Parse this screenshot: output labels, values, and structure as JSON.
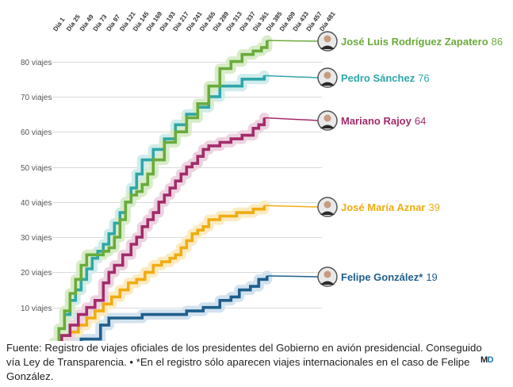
{
  "chart_data": {
    "type": "line",
    "x_label_prefix": "Día",
    "x_ticks": [
      1,
      25,
      49,
      73,
      97,
      121,
      145,
      169,
      193,
      217,
      241,
      265,
      289,
      313,
      337,
      361,
      385,
      409,
      433,
      457,
      481
    ],
    "y_ticks": [
      {
        "value": 10,
        "label": "10 viajes"
      },
      {
        "value": 20,
        "label": "20 viajes"
      },
      {
        "value": 30,
        "label": "30 viajes"
      },
      {
        "value": 40,
        "label": "40 viajes"
      },
      {
        "value": 50,
        "label": "50 viajes"
      },
      {
        "value": 60,
        "label": "60 viajes"
      },
      {
        "value": 70,
        "label": "70 viajes"
      },
      {
        "value": 80,
        "label": "80 viajes"
      }
    ],
    "xlim": [
      1,
      481
    ],
    "ylim": [
      0,
      86
    ],
    "grid": true,
    "series": [
      {
        "name": "José Luis Rodríguez Zapatero",
        "value_label": "86",
        "color": "#6aab3c",
        "halo": "#d8ecc8",
        "points": [
          [
            1,
            0
          ],
          [
            10,
            4
          ],
          [
            20,
            9
          ],
          [
            30,
            14
          ],
          [
            40,
            18
          ],
          [
            50,
            22
          ],
          [
            60,
            25
          ],
          [
            80,
            25
          ],
          [
            90,
            26
          ],
          [
            100,
            27
          ],
          [
            110,
            30
          ],
          [
            120,
            35
          ],
          [
            130,
            40
          ],
          [
            140,
            42
          ],
          [
            150,
            43
          ],
          [
            160,
            45
          ],
          [
            170,
            48
          ],
          [
            180,
            52
          ],
          [
            200,
            57
          ],
          [
            220,
            60
          ],
          [
            240,
            64
          ],
          [
            260,
            68
          ],
          [
            280,
            73
          ],
          [
            300,
            78
          ],
          [
            320,
            80
          ],
          [
            340,
            82
          ],
          [
            360,
            83
          ],
          [
            375,
            84
          ],
          [
            385,
            86
          ]
        ]
      },
      {
        "name": "Pedro Sánchez",
        "value_label": "76",
        "color": "#2ea7a8",
        "halo": "#d0ecec",
        "points": [
          [
            1,
            0
          ],
          [
            10,
            4
          ],
          [
            20,
            8
          ],
          [
            30,
            12
          ],
          [
            40,
            15
          ],
          [
            50,
            18
          ],
          [
            60,
            21
          ],
          [
            70,
            24
          ],
          [
            80,
            26
          ],
          [
            90,
            28
          ],
          [
            100,
            31
          ],
          [
            110,
            34
          ],
          [
            120,
            37
          ],
          [
            130,
            40
          ],
          [
            140,
            44
          ],
          [
            150,
            48
          ],
          [
            160,
            52
          ],
          [
            180,
            55
          ],
          [
            200,
            58
          ],
          [
            220,
            62
          ],
          [
            240,
            65
          ],
          [
            260,
            67
          ],
          [
            280,
            70
          ],
          [
            300,
            73
          ],
          [
            320,
            73
          ],
          [
            340,
            75
          ],
          [
            360,
            75
          ],
          [
            380,
            76
          ]
        ]
      },
      {
        "name": "Mariano Rajoy",
        "value_label": "64",
        "color": "#a32b6b",
        "halo": "#ecd3e0",
        "points": [
          [
            1,
            0
          ],
          [
            15,
            2
          ],
          [
            30,
            5
          ],
          [
            45,
            8
          ],
          [
            60,
            10
          ],
          [
            75,
            12
          ],
          [
            90,
            17
          ],
          [
            100,
            20
          ],
          [
            110,
            22
          ],
          [
            125,
            25
          ],
          [
            140,
            28
          ],
          [
            150,
            30
          ],
          [
            160,
            33
          ],
          [
            170,
            35
          ],
          [
            180,
            37
          ],
          [
            190,
            40
          ],
          [
            200,
            42
          ],
          [
            210,
            44
          ],
          [
            220,
            46
          ],
          [
            230,
            48
          ],
          [
            240,
            50
          ],
          [
            250,
            51
          ],
          [
            260,
            53
          ],
          [
            270,
            55
          ],
          [
            280,
            56
          ],
          [
            300,
            57
          ],
          [
            320,
            58
          ],
          [
            340,
            59
          ],
          [
            360,
            61
          ],
          [
            370,
            62
          ],
          [
            380,
            64
          ]
        ]
      },
      {
        "name": "José María Aznar",
        "value_label": "39",
        "color": "#f0ac12",
        "halo": "#fbebc2",
        "points": [
          [
            1,
            0
          ],
          [
            15,
            2
          ],
          [
            30,
            3
          ],
          [
            45,
            5
          ],
          [
            60,
            7
          ],
          [
            75,
            9
          ],
          [
            90,
            11
          ],
          [
            105,
            13
          ],
          [
            120,
            15
          ],
          [
            135,
            17
          ],
          [
            150,
            18
          ],
          [
            165,
            20
          ],
          [
            180,
            22
          ],
          [
            195,
            23
          ],
          [
            210,
            24
          ],
          [
            220,
            25
          ],
          [
            230,
            27
          ],
          [
            240,
            29
          ],
          [
            250,
            31
          ],
          [
            260,
            32
          ],
          [
            270,
            33
          ],
          [
            280,
            35
          ],
          [
            300,
            36
          ],
          [
            330,
            37
          ],
          [
            360,
            38
          ],
          [
            380,
            39
          ]
        ]
      },
      {
        "name": "Felipe González*",
        "value_label": "19",
        "color": "#1f5e8c",
        "halo": "#d2e2ee",
        "points": [
          [
            1,
            0
          ],
          [
            30,
            0
          ],
          [
            50,
            1
          ],
          [
            70,
            1
          ],
          [
            85,
            5
          ],
          [
            100,
            7
          ],
          [
            125,
            7
          ],
          [
            160,
            8
          ],
          [
            200,
            8
          ],
          [
            240,
            9
          ],
          [
            270,
            10
          ],
          [
            300,
            12
          ],
          [
            320,
            13
          ],
          [
            335,
            15
          ],
          [
            355,
            16
          ],
          [
            370,
            18
          ],
          [
            385,
            19
          ]
        ]
      }
    ]
  },
  "footer": {
    "source_text": "Fuente: Registro de viajes oficiales de los presidentes del Gobierno en avión presidencial. Conseguido vía Ley de Transparencia. • *En el registro sólo aparecen viajes internacionales en el caso de Felipe González."
  },
  "logo": {
    "m": "M",
    "d": "D"
  }
}
